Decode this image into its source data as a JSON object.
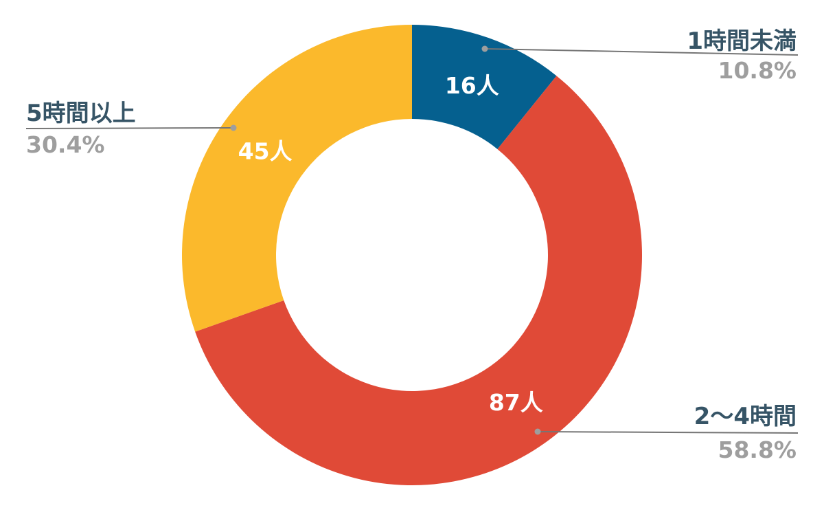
{
  "chart_data": {
    "type": "pie",
    "title": "",
    "donut": true,
    "slices": [
      {
        "label": "1時間未満",
        "value": 16,
        "value_label": "16人",
        "percent_label": "10.8%",
        "color": "#05608F"
      },
      {
        "label": "2〜4時間",
        "value": 87,
        "value_label": "87人",
        "percent_label": "58.8%",
        "color": "#E04A37"
      },
      {
        "label": "5時間以上",
        "value": 45,
        "value_label": "45人",
        "percent_label": "30.4%",
        "color": "#FBB92C"
      }
    ],
    "label_color": "#365466",
    "percent_color": "#9E9E9E",
    "leader_line_color": "#757575"
  }
}
